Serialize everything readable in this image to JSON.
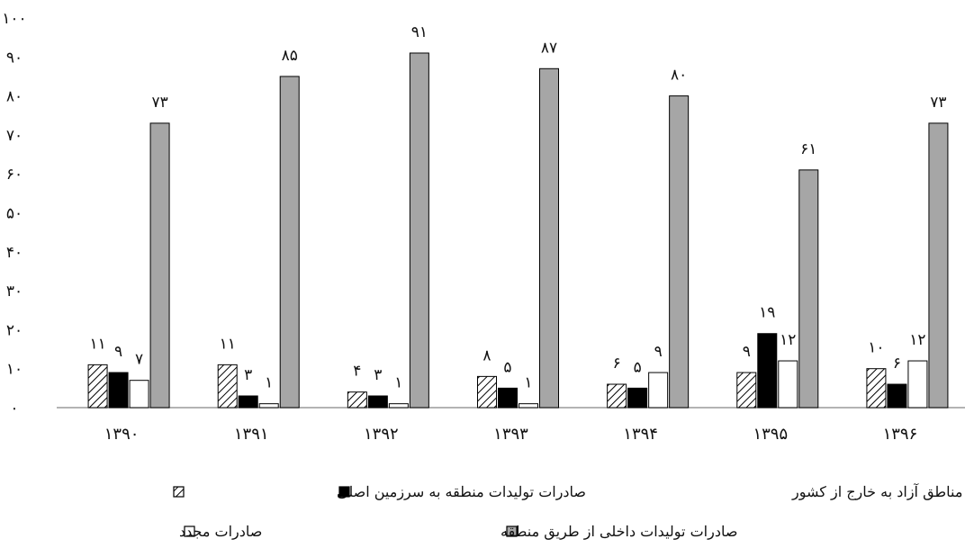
{
  "chart_data": {
    "type": "bar",
    "title": "",
    "xlabel": "",
    "ylabel": "",
    "ylim": [
      0,
      100
    ],
    "y_ticks": [
      {
        "value": 0,
        "label": "۰"
      },
      {
        "value": 10,
        "label": "۱۰"
      },
      {
        "value": 20,
        "label": "۲۰"
      },
      {
        "value": 30,
        "label": "۳۰"
      },
      {
        "value": 40,
        "label": "۴۰"
      },
      {
        "value": 50,
        "label": "۵۰"
      },
      {
        "value": 60,
        "label": "۶۰"
      },
      {
        "value": 70,
        "label": "۷۰"
      },
      {
        "value": 80,
        "label": "۸۰"
      },
      {
        "value": 90,
        "label": "۹۰"
      },
      {
        "value": 100,
        "label": "۱۰۰"
      }
    ],
    "grid": false,
    "legend_position": "bottom",
    "categories": [
      "۱۳۹۰",
      "۱۳۹۱",
      "۱۳۹۲",
      "۱۳۹۳",
      "۱۳۹۴",
      "۱۳۹۵",
      "۱۳۹۶"
    ],
    "series": [
      {
        "name": "صادرات تولیدات مناطق آزاد به خارج از کشور",
        "pattern": "hatch",
        "color": "#ffffff",
        "values": [
          11,
          11,
          4,
          8,
          6,
          9,
          10
        ],
        "labels": [
          "۱۱",
          "۱۱",
          "۴",
          "۸",
          "۶",
          "۹",
          "۱۰"
        ]
      },
      {
        "name": "صادرات تولیدات منطقه به سرزمین اصلی",
        "pattern": "solid",
        "color": "#000000",
        "values": [
          9,
          3,
          3,
          5,
          5,
          19,
          6
        ],
        "labels": [
          "۹",
          "۳",
          "۳",
          "۵",
          "۵",
          "۱۹",
          "۶"
        ]
      },
      {
        "name": "صادرات مجدد",
        "pattern": "solid",
        "color": "#ffffff",
        "values": [
          7,
          1,
          1,
          1,
          9,
          12,
          12
        ],
        "labels": [
          "۷",
          "۱",
          "۱",
          "۱",
          "۹",
          "۱۲",
          "۱۲"
        ]
      },
      {
        "name": "صادرات تولیدات داخلی از طریق منطقه",
        "pattern": "solid",
        "color": "#a6a6a6",
        "values": [
          73,
          85,
          91,
          87,
          80,
          61,
          73
        ],
        "labels": [
          "۷۳",
          "۸۵",
          "۹۱",
          "۸۷",
          "۸۰",
          "۶۱",
          "۷۳"
        ]
      }
    ]
  }
}
